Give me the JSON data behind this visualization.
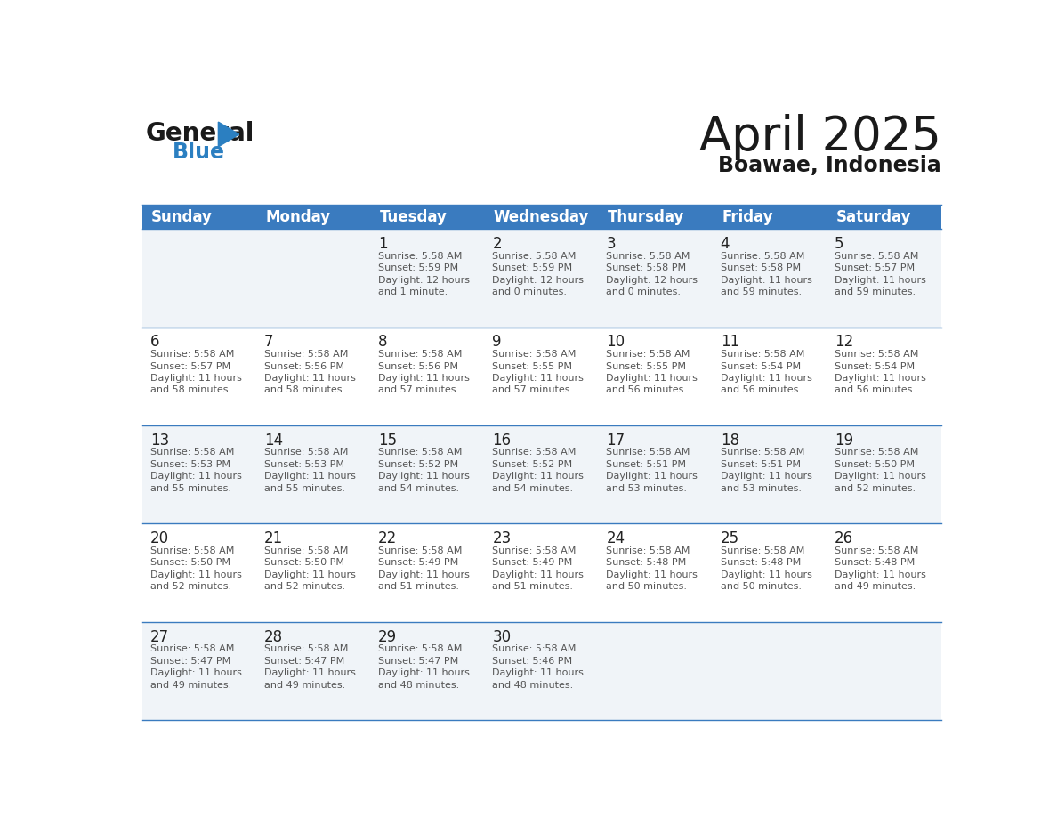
{
  "title": "April 2025",
  "subtitle": "Boawae, Indonesia",
  "header_color": "#3a7bbf",
  "header_text_color": "#ffffff",
  "weekdays": [
    "Sunday",
    "Monday",
    "Tuesday",
    "Wednesday",
    "Thursday",
    "Friday",
    "Saturday"
  ],
  "background_color": "#ffffff",
  "cell_bg_odd": "#f0f4f8",
  "cell_bg_even": "#ffffff",
  "border_color": "#3a7bbf",
  "day_text_color": "#222222",
  "info_text_color": "#555555",
  "weeks": [
    [
      {
        "day": null,
        "sunrise": null,
        "sunset": null,
        "daylight_hours": null,
        "daylight_min": null
      },
      {
        "day": null,
        "sunrise": null,
        "sunset": null,
        "daylight_hours": null,
        "daylight_min": null
      },
      {
        "day": 1,
        "sunrise": "5:58 AM",
        "sunset": "5:59 PM",
        "daylight_hours": 12,
        "daylight_min": "1 minute"
      },
      {
        "day": 2,
        "sunrise": "5:58 AM",
        "sunset": "5:59 PM",
        "daylight_hours": 12,
        "daylight_min": "0 minutes"
      },
      {
        "day": 3,
        "sunrise": "5:58 AM",
        "sunset": "5:58 PM",
        "daylight_hours": 12,
        "daylight_min": "0 minutes"
      },
      {
        "day": 4,
        "sunrise": "5:58 AM",
        "sunset": "5:58 PM",
        "daylight_hours": 11,
        "daylight_min": "59 minutes"
      },
      {
        "day": 5,
        "sunrise": "5:58 AM",
        "sunset": "5:57 PM",
        "daylight_hours": 11,
        "daylight_min": "59 minutes"
      }
    ],
    [
      {
        "day": 6,
        "sunrise": "5:58 AM",
        "sunset": "5:57 PM",
        "daylight_hours": 11,
        "daylight_min": "58 minutes"
      },
      {
        "day": 7,
        "sunrise": "5:58 AM",
        "sunset": "5:56 PM",
        "daylight_hours": 11,
        "daylight_min": "58 minutes"
      },
      {
        "day": 8,
        "sunrise": "5:58 AM",
        "sunset": "5:56 PM",
        "daylight_hours": 11,
        "daylight_min": "57 minutes"
      },
      {
        "day": 9,
        "sunrise": "5:58 AM",
        "sunset": "5:55 PM",
        "daylight_hours": 11,
        "daylight_min": "57 minutes"
      },
      {
        "day": 10,
        "sunrise": "5:58 AM",
        "sunset": "5:55 PM",
        "daylight_hours": 11,
        "daylight_min": "56 minutes"
      },
      {
        "day": 11,
        "sunrise": "5:58 AM",
        "sunset": "5:54 PM",
        "daylight_hours": 11,
        "daylight_min": "56 minutes"
      },
      {
        "day": 12,
        "sunrise": "5:58 AM",
        "sunset": "5:54 PM",
        "daylight_hours": 11,
        "daylight_min": "56 minutes"
      }
    ],
    [
      {
        "day": 13,
        "sunrise": "5:58 AM",
        "sunset": "5:53 PM",
        "daylight_hours": 11,
        "daylight_min": "55 minutes"
      },
      {
        "day": 14,
        "sunrise": "5:58 AM",
        "sunset": "5:53 PM",
        "daylight_hours": 11,
        "daylight_min": "55 minutes"
      },
      {
        "day": 15,
        "sunrise": "5:58 AM",
        "sunset": "5:52 PM",
        "daylight_hours": 11,
        "daylight_min": "54 minutes"
      },
      {
        "day": 16,
        "sunrise": "5:58 AM",
        "sunset": "5:52 PM",
        "daylight_hours": 11,
        "daylight_min": "54 minutes"
      },
      {
        "day": 17,
        "sunrise": "5:58 AM",
        "sunset": "5:51 PM",
        "daylight_hours": 11,
        "daylight_min": "53 minutes"
      },
      {
        "day": 18,
        "sunrise": "5:58 AM",
        "sunset": "5:51 PM",
        "daylight_hours": 11,
        "daylight_min": "53 minutes"
      },
      {
        "day": 19,
        "sunrise": "5:58 AM",
        "sunset": "5:50 PM",
        "daylight_hours": 11,
        "daylight_min": "52 minutes"
      }
    ],
    [
      {
        "day": 20,
        "sunrise": "5:58 AM",
        "sunset": "5:50 PM",
        "daylight_hours": 11,
        "daylight_min": "52 minutes"
      },
      {
        "day": 21,
        "sunrise": "5:58 AM",
        "sunset": "5:50 PM",
        "daylight_hours": 11,
        "daylight_min": "52 minutes"
      },
      {
        "day": 22,
        "sunrise": "5:58 AM",
        "sunset": "5:49 PM",
        "daylight_hours": 11,
        "daylight_min": "51 minutes"
      },
      {
        "day": 23,
        "sunrise": "5:58 AM",
        "sunset": "5:49 PM",
        "daylight_hours": 11,
        "daylight_min": "51 minutes"
      },
      {
        "day": 24,
        "sunrise": "5:58 AM",
        "sunset": "5:48 PM",
        "daylight_hours": 11,
        "daylight_min": "50 minutes"
      },
      {
        "day": 25,
        "sunrise": "5:58 AM",
        "sunset": "5:48 PM",
        "daylight_hours": 11,
        "daylight_min": "50 minutes"
      },
      {
        "day": 26,
        "sunrise": "5:58 AM",
        "sunset": "5:48 PM",
        "daylight_hours": 11,
        "daylight_min": "49 minutes"
      }
    ],
    [
      {
        "day": 27,
        "sunrise": "5:58 AM",
        "sunset": "5:47 PM",
        "daylight_hours": 11,
        "daylight_min": "49 minutes"
      },
      {
        "day": 28,
        "sunrise": "5:58 AM",
        "sunset": "5:47 PM",
        "daylight_hours": 11,
        "daylight_min": "49 minutes"
      },
      {
        "day": 29,
        "sunrise": "5:58 AM",
        "sunset": "5:47 PM",
        "daylight_hours": 11,
        "daylight_min": "48 minutes"
      },
      {
        "day": 30,
        "sunrise": "5:58 AM",
        "sunset": "5:46 PM",
        "daylight_hours": 11,
        "daylight_min": "48 minutes"
      },
      {
        "day": null,
        "sunrise": null,
        "sunset": null,
        "daylight_hours": null,
        "daylight_min": null
      },
      {
        "day": null,
        "sunrise": null,
        "sunset": null,
        "daylight_hours": null,
        "daylight_min": null
      },
      {
        "day": null,
        "sunrise": null,
        "sunset": null,
        "daylight_hours": null,
        "daylight_min": null
      }
    ]
  ]
}
